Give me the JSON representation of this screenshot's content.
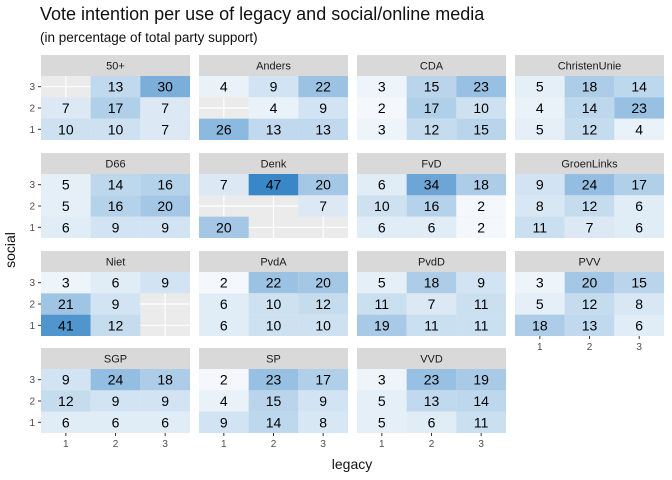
{
  "chart_data": {
    "type": "heatmap",
    "title": "Vote intention per use of legacy and social/online media",
    "subtitle": "(in percentage of total party support)",
    "xlabel": "legacy",
    "ylabel": "social",
    "x_ticks": [
      "1",
      "2",
      "3"
    ],
    "y_ticks": [
      "1",
      "2",
      "3"
    ],
    "color_low": "#ffffff",
    "color_high": "#3a87c8",
    "panels": [
      {
        "name": "50+",
        "cells": [
          [
            null,
            13,
            30
          ],
          [
            7,
            17,
            7
          ],
          [
            10,
            10,
            7
          ]
        ]
      },
      {
        "name": "Anders",
        "cells": [
          [
            4,
            9,
            22
          ],
          [
            null,
            4,
            9
          ],
          [
            26,
            13,
            13
          ]
        ]
      },
      {
        "name": "CDA",
        "cells": [
          [
            3,
            15,
            23
          ],
          [
            2,
            17,
            10
          ],
          [
            3,
            12,
            15
          ]
        ]
      },
      {
        "name": "ChristenUnie",
        "cells": [
          [
            5,
            18,
            14
          ],
          [
            4,
            14,
            23
          ],
          [
            5,
            12,
            4
          ]
        ]
      },
      {
        "name": "D66",
        "cells": [
          [
            5,
            14,
            16
          ],
          [
            5,
            16,
            20
          ],
          [
            6,
            9,
            9
          ]
        ]
      },
      {
        "name": "Denk",
        "cells": [
          [
            7,
            47,
            20
          ],
          [
            null,
            null,
            7
          ],
          [
            20,
            null,
            null
          ]
        ]
      },
      {
        "name": "FvD",
        "cells": [
          [
            6,
            34,
            18
          ],
          [
            10,
            16,
            2
          ],
          [
            6,
            6,
            2
          ]
        ]
      },
      {
        "name": "GroenLinks",
        "cells": [
          [
            9,
            24,
            17
          ],
          [
            8,
            12,
            6
          ],
          [
            11,
            7,
            6
          ]
        ]
      },
      {
        "name": "Niet",
        "cells": [
          [
            3,
            6,
            9
          ],
          [
            21,
            9,
            null
          ],
          [
            41,
            12,
            null
          ]
        ]
      },
      {
        "name": "PvdA",
        "cells": [
          [
            2,
            22,
            20
          ],
          [
            6,
            10,
            12
          ],
          [
            6,
            10,
            10
          ]
        ]
      },
      {
        "name": "PvdD",
        "cells": [
          [
            5,
            18,
            9
          ],
          [
            11,
            7,
            11
          ],
          [
            19,
            11,
            11
          ]
        ]
      },
      {
        "name": "PVV",
        "cells": [
          [
            3,
            20,
            15
          ],
          [
            5,
            12,
            8
          ],
          [
            18,
            13,
            6
          ]
        ]
      },
      {
        "name": "SGP",
        "cells": [
          [
            9,
            24,
            18
          ],
          [
            12,
            9,
            9
          ],
          [
            6,
            6,
            6
          ]
        ]
      },
      {
        "name": "SP",
        "cells": [
          [
            2,
            23,
            17
          ],
          [
            4,
            15,
            9
          ],
          [
            9,
            14,
            8
          ]
        ]
      },
      {
        "name": "VVD",
        "cells": [
          [
            3,
            23,
            19
          ],
          [
            5,
            13,
            14
          ],
          [
            5,
            6,
            11
          ]
        ]
      }
    ]
  }
}
